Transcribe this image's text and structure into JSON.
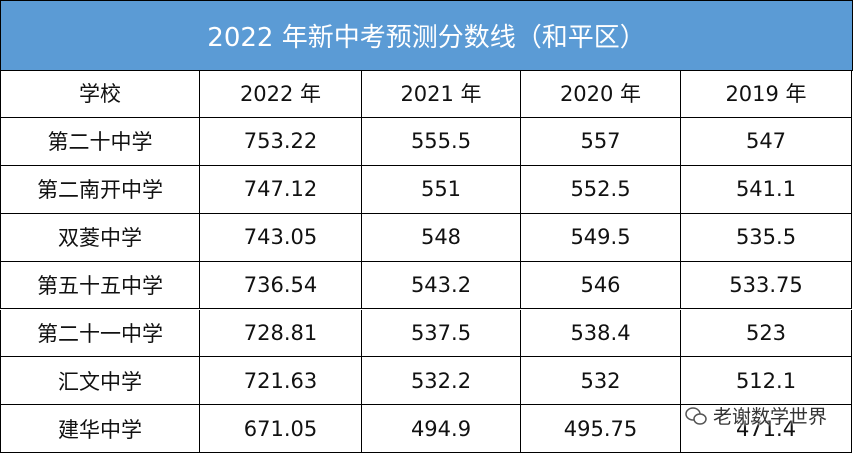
{
  "title": "2022 年新中考预测分数线（和平区）",
  "table": {
    "header": [
      "学校",
      "2022 年",
      "2021 年",
      "2020 年",
      "2019 年"
    ],
    "rows": [
      [
        "第二十中学",
        "753.22",
        "555.5",
        "557",
        "547"
      ],
      [
        "第二南开中学",
        "747.12",
        "551",
        "552.5",
        "541.1"
      ],
      [
        "双菱中学",
        "743.05",
        "548",
        "549.5",
        "535.5"
      ],
      [
        "第五十五中学",
        "736.54",
        "543.2",
        "546",
        "533.75"
      ],
      [
        "第二十一中学",
        "728.81",
        "537.5",
        "538.4",
        "523"
      ],
      [
        "汇文中学",
        "721.63",
        "532.2",
        "532",
        "512.1"
      ],
      [
        "建华中学",
        "671.05",
        "494.9",
        "495.75",
        "471.4"
      ]
    ]
  },
  "watermark": "老谢数学世界"
}
